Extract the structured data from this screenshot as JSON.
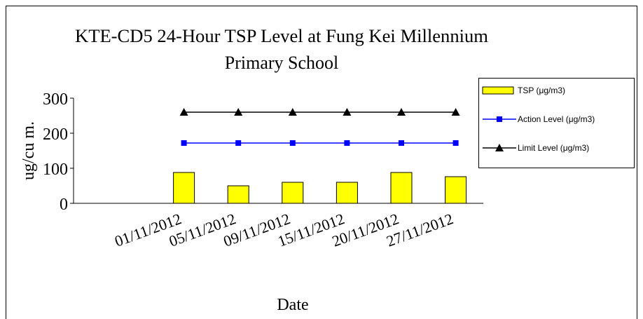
{
  "chart_data": {
    "type": "bar",
    "title": "KTE-CD5 24-Hour TSP Level at Fung Kei Millennium Primary School",
    "x_label": "Date",
    "y_label": "ug/cu m.",
    "categories": [
      null,
      "01/11/2012",
      "05/11/2012",
      "09/11/2012",
      "15/11/2012",
      "20/11/2012",
      "27/11/2012"
    ],
    "series": [
      {
        "name": "TSP (μg/m3)",
        "type": "bar",
        "color": "#ffff00",
        "values": [
          null,
          88,
          50,
          60,
          60,
          88,
          76
        ]
      },
      {
        "name": "Action Level (μg/m3)",
        "type": "line",
        "marker": "square",
        "color": "#0000ff",
        "values": [
          null,
          172,
          172,
          172,
          172,
          172,
          172
        ]
      },
      {
        "name": "Limit Level (μg/m3)",
        "type": "line",
        "marker": "triangle",
        "color": "#000000",
        "values": [
          null,
          260,
          260,
          260,
          260,
          260,
          260
        ]
      }
    ],
    "ylim": [
      0,
      300
    ],
    "yticks": [
      0,
      100,
      200,
      300
    ],
    "grid": false,
    "legend": "right"
  }
}
